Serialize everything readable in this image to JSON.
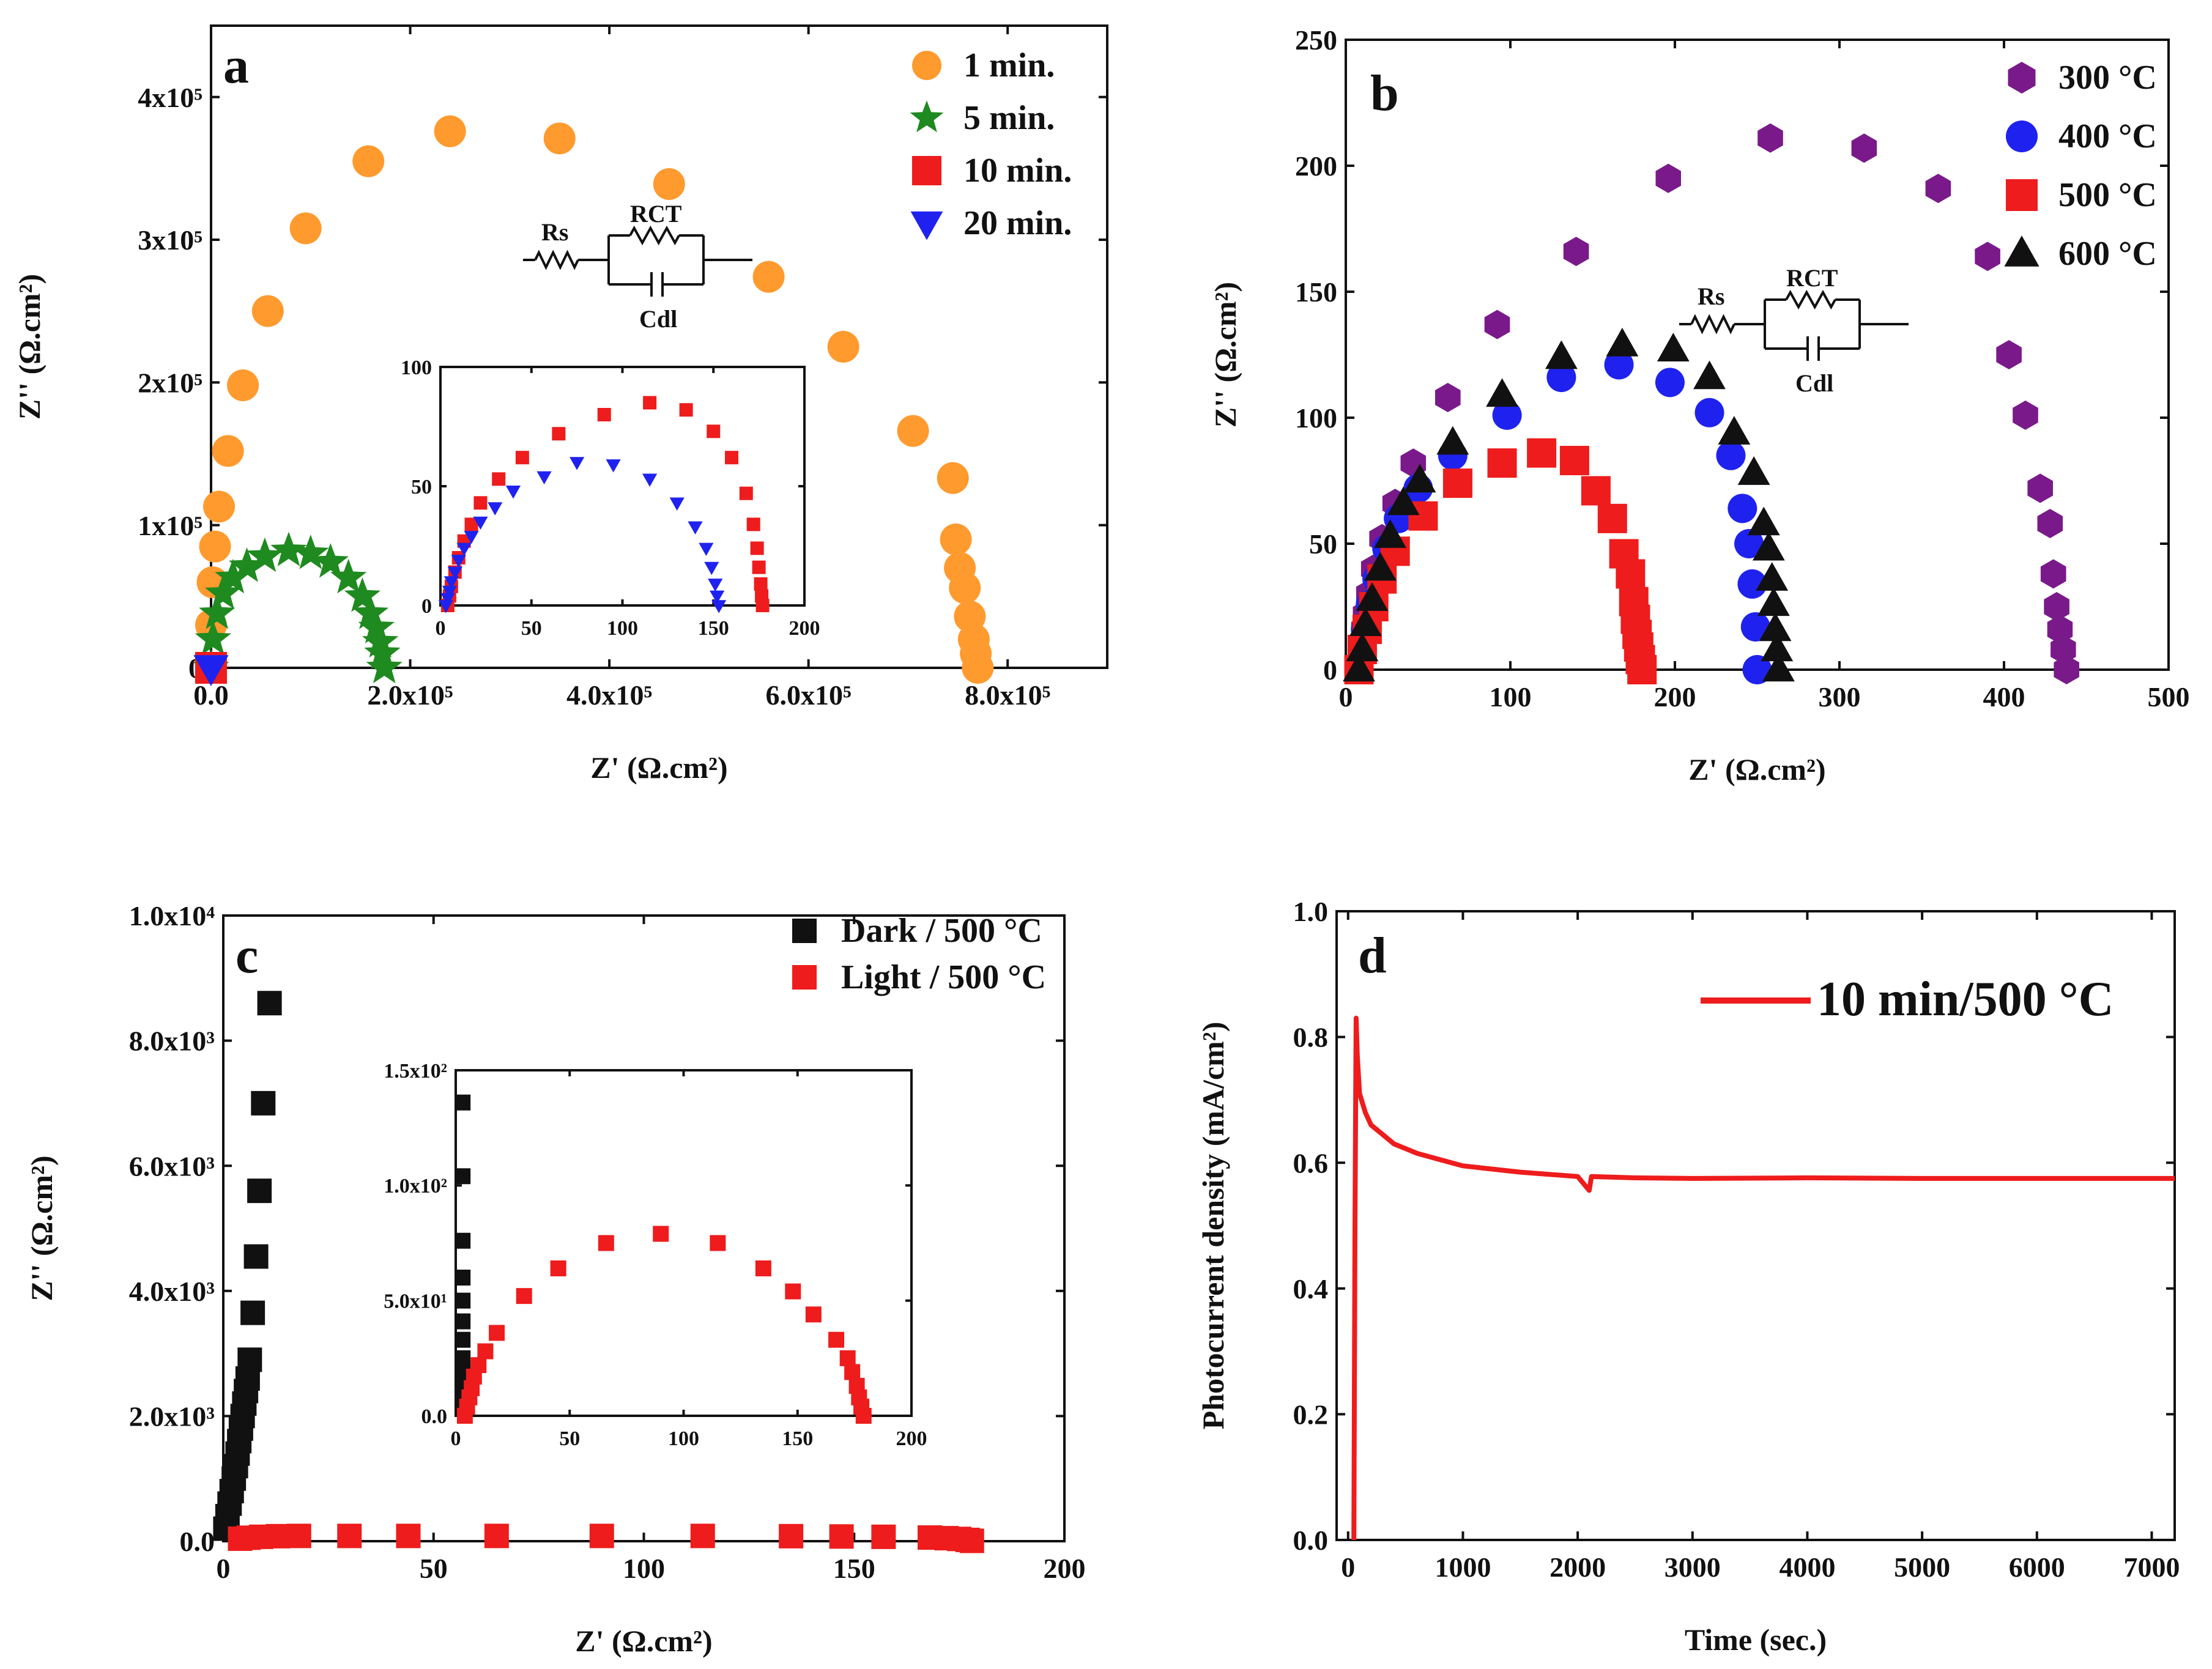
{
  "chart_data": [
    {
      "panel": "a",
      "type": "scatter",
      "xlabel": "Z' (Ω.cm²)",
      "ylabel": "Z'' (Ω.cm²)",
      "xlim": [
        0,
        900000
      ],
      "ylim": [
        0,
        450000
      ],
      "x_ticks": [
        0,
        200000,
        400000,
        600000,
        800000
      ],
      "x_tick_labels": [
        "0.0",
        "2.0x10⁵",
        "4.0x10⁵",
        "6.0x10⁵",
        "8.0x10⁵"
      ],
      "y_ticks": [
        0,
        100000,
        200000,
        300000,
        400000
      ],
      "y_tick_labels": [
        "0",
        "1x10⁵",
        "2x10⁵",
        "3x10⁵",
        "4x10⁵"
      ],
      "series": [
        {
          "name": "1 min.",
          "marker": "circle",
          "color": "#ff9a2e",
          "x": [
            0,
            1500,
            4000,
            8000,
            17000,
            32000,
            57000,
            95000,
            158000,
            240000,
            350000,
            460000,
            560000,
            635000,
            705000,
            745000,
            748000,
            752000,
            757000,
            762000,
            766000,
            768000,
            770000
          ],
          "y": [
            30000,
            60000,
            85000,
            113000,
            152000,
            198000,
            250000,
            308000,
            355000,
            376000,
            371000,
            339000,
            274000,
            225000,
            166000,
            133000,
            90000,
            70000,
            56000,
            36000,
            20000,
            10000,
            0
          ]
        },
        {
          "name": "5 min.",
          "marker": "star",
          "color": "#1f8a1f",
          "x": [
            0,
            2000,
            6000,
            12000,
            22000,
            36000,
            54000,
            78000,
            100000,
            120000,
            138000,
            152000,
            160000,
            166000,
            170000,
            172000,
            174000
          ],
          "y": [
            0,
            20000,
            38000,
            52000,
            63000,
            71000,
            78000,
            82000,
            80000,
            74000,
            63000,
            50000,
            38000,
            28000,
            18000,
            10000,
            0
          ]
        },
        {
          "name": "10 min.",
          "marker": "square",
          "color": "#ee1c1c",
          "x": [
            0
          ],
          "y": [
            0
          ]
        },
        {
          "name": "20 min.",
          "marker": "triangle-down",
          "color": "#1f22ee",
          "x": [
            0
          ],
          "y": [
            0
          ]
        }
      ],
      "inset": {
        "xlim": [
          0,
          200
        ],
        "ylim": [
          0,
          100
        ],
        "x_ticks": [
          0,
          50,
          100,
          150,
          200
        ],
        "x_tick_labels": [
          "0",
          "50",
          "100",
          "150",
          "200"
        ],
        "y_ticks": [
          0,
          50,
          100
        ],
        "y_tick_labels": [
          "0",
          "50",
          "100"
        ],
        "series": [
          {
            "name": "10 min.",
            "marker": "square",
            "color": "#ee1c1c",
            "x": [
              4,
              5,
              6,
              8,
              10,
              13,
              17,
              22,
              32,
              45,
              65,
              90,
              115,
              135,
              150,
              160,
              168,
              172,
              174,
              175,
              176,
              176.5,
              177
            ],
            "y": [
              0,
              4,
              8,
              14,
              20,
              27,
              34,
              43,
              53,
              62,
              72,
              80,
              85,
              82,
              73,
              62,
              47,
              34,
              24,
              16,
              9,
              4,
              0
            ]
          },
          {
            "name": "20 min.",
            "marker": "triangle-down",
            "color": "#1f22ee",
            "x": [
              3,
              4,
              5,
              6,
              8,
              10,
              13,
              17,
              22,
              30,
              40,
              57,
              75,
              95,
              115,
              130,
              140,
              146,
              149,
              151,
              152,
              153
            ],
            "y": [
              0,
              3,
              6,
              10,
              14,
              19,
              24,
              29,
              35,
              41,
              48,
              54,
              60,
              59,
              53,
              43,
              33,
              24,
              16,
              9,
              4,
              0
            ]
          }
        ]
      },
      "circuit": {
        "rs": "Rs",
        "rct": "RCT",
        "cdl": "Cdl"
      }
    },
    {
      "panel": "b",
      "type": "scatter",
      "xlabel": "Z' (Ω.cm²)",
      "ylabel": "Z'' (Ω.cm²)",
      "xlim": [
        0,
        500
      ],
      "ylim": [
        0,
        250
      ],
      "x_ticks": [
        0,
        100,
        200,
        300,
        400,
        500
      ],
      "x_tick_labels": [
        "0",
        "100",
        "200",
        "300",
        "400",
        "500"
      ],
      "y_ticks": [
        0,
        50,
        100,
        150,
        200,
        250
      ],
      "y_tick_labels": [
        "0",
        "50",
        "100",
        "150",
        "200",
        "250"
      ],
      "series": [
        {
          "name": "300 °C",
          "marker": "hexagon",
          "color": "#7a1a8a",
          "x": [
            8,
            9,
            10,
            11,
            12,
            14,
            17,
            22,
            30,
            41,
            62,
            92,
            140,
            196,
            258,
            315,
            360,
            390,
            403,
            413,
            422,
            428,
            430,
            432,
            434,
            436,
            438
          ],
          "y": [
            0,
            5,
            10,
            16,
            22,
            30,
            40,
            52,
            66,
            82,
            108,
            137,
            166,
            195,
            211,
            207,
            191,
            164,
            125,
            101,
            72,
            58,
            38,
            25,
            16,
            8,
            0
          ]
        },
        {
          "name": "400 °C",
          "marker": "circle",
          "color": "#1f22ee",
          "x": [
            8,
            10,
            12,
            15,
            19,
            25,
            32,
            44,
            65,
            98,
            131,
            166,
            197,
            221,
            234,
            241,
            245,
            247,
            249,
            250
          ],
          "y": [
            0,
            8,
            16,
            26,
            36,
            48,
            60,
            72,
            85,
            101,
            116,
            121,
            114,
            102,
            85,
            64,
            50,
            34,
            17,
            0
          ]
        },
        {
          "name": "500 °C",
          "marker": "square",
          "color": "#ee1c1c",
          "x": [
            8,
            10,
            13,
            17,
            22,
            30,
            47,
            68,
            95,
            119,
            139,
            152,
            162,
            169,
            173,
            175,
            176,
            177,
            178,
            179,
            180
          ],
          "y": [
            0,
            8,
            16,
            25,
            36,
            47,
            61,
            74,
            82,
            86,
            83,
            71,
            60,
            46,
            38,
            27,
            20,
            14,
            9,
            4,
            0
          ]
        },
        {
          "name": "600 °C",
          "marker": "triangle-up",
          "color": "#111111",
          "x": [
            8,
            10,
            12,
            16,
            21,
            27,
            35,
            45,
            65,
            95,
            131,
            168,
            199,
            221,
            236,
            248,
            254,
            257,
            259,
            260,
            261,
            262,
            263
          ],
          "y": [
            0,
            8,
            18,
            28,
            40,
            53,
            66,
            75,
            90,
            109,
            124,
            129,
            127,
            116,
            94,
            78,
            58,
            48,
            36,
            26,
            16,
            8,
            0
          ]
        }
      ],
      "circuit": {
        "rs": "Rs",
        "rct": "RCT",
        "cdl": "Cdl"
      }
    },
    {
      "panel": "c",
      "type": "scatter",
      "xlabel": "Z' (Ω.cm²)",
      "ylabel": "Z'' (Ω.cm²)",
      "xlim": [
        0,
        200
      ],
      "ylim": [
        0,
        10000
      ],
      "x_ticks": [
        0,
        50,
        100,
        150,
        200
      ],
      "x_tick_labels": [
        "0",
        "50",
        "100",
        "150",
        "200"
      ],
      "y_ticks": [
        0,
        2000,
        4000,
        6000,
        8000,
        10000
      ],
      "y_tick_labels": [
        "0.0",
        "2.0x10³",
        "4.0x10³",
        "6.0x10³",
        "8.0x10³",
        "1.0x10⁴"
      ],
      "series": [
        {
          "name": "Dark / 500 °C",
          "marker": "square",
          "color": "#111111",
          "x": [
            0.5,
            1,
            1.5,
            2,
            2.5,
            3,
            3.4,
            3.8,
            4.2,
            4.6,
            5,
            5.4,
            5.8,
            6.3,
            7,
            7.8,
            8.6,
            9.5,
            11
          ],
          "y": [
            200,
            400,
            600,
            800,
            1000,
            1200,
            1400,
            1600,
            1800,
            2000,
            2200,
            2400,
            2600,
            2900,
            3650,
            4550,
            5600,
            7000,
            8600
          ]
        },
        {
          "name": "Light / 500 °C",
          "marker": "square",
          "color": "#ee1c1c",
          "x": [
            4,
            6,
            9,
            13,
            18,
            30,
            44,
            65,
            90,
            114,
            135,
            147,
            157,
            168,
            172,
            175,
            177,
            178
          ],
          "y": [
            40,
            55,
            70,
            80,
            84,
            84,
            84,
            84,
            84,
            84,
            80,
            75,
            70,
            58,
            48,
            36,
            20,
            5
          ]
        }
      ],
      "inset": {
        "xlim": [
          0,
          200
        ],
        "ylim": [
          0,
          150
        ],
        "x_ticks": [
          0,
          50,
          100,
          150,
          200
        ],
        "x_tick_labels": [
          "0",
          "50",
          "100",
          "150",
          "200"
        ],
        "y_ticks": [
          0,
          50,
          100,
          150
        ],
        "y_tick_labels": [
          "0.0",
          "5.0x10¹",
          "1.0x10²",
          "1.5x10²"
        ],
        "series": [
          {
            "name": "Dark / 500 °C",
            "marker": "square",
            "color": "#111111",
            "x": [
              3,
              3,
              3,
              3,
              3,
              3,
              3,
              3,
              3,
              3,
              3,
              3
            ],
            "y": [
              4,
              9,
              14,
              19,
              25,
              33,
              41,
              50,
              60,
              76,
              104,
              136
            ]
          },
          {
            "name": "Light / 500 °C",
            "marker": "square",
            "color": "#ee1c1c",
            "x": [
              4,
              5,
              6,
              7,
              8,
              10,
              13,
              18,
              30,
              45,
              66,
              90,
              115,
              135,
              148,
              157,
              167,
              172,
              174,
              176,
              177,
              178,
              179
            ],
            "y": [
              0,
              4,
              8,
              12,
              17,
              22,
              28,
              36,
              52,
              64,
              75,
              79,
              75,
              64,
              54,
              44,
              33,
              25,
              19,
              13,
              8,
              4,
              0
            ]
          }
        ]
      }
    },
    {
      "panel": "d",
      "type": "line",
      "xlabel": "Time (sec.)",
      "ylabel": "Photocurrent density (mA/cm²)",
      "xlim": [
        -100,
        7200
      ],
      "ylim": [
        0,
        1.0
      ],
      "x_ticks": [
        0,
        1000,
        2000,
        3000,
        4000,
        5000,
        6000,
        7000
      ],
      "x_tick_labels": [
        "0",
        "1000",
        "2000",
        "3000",
        "4000",
        "5000",
        "6000",
        "7000"
      ],
      "y_ticks": [
        0,
        0.2,
        0.4,
        0.6,
        0.8,
        1.0
      ],
      "y_tick_labels": [
        "0.0",
        "0.2",
        "0.4",
        "0.6",
        "0.8",
        "1.0"
      ],
      "series": [
        {
          "name": "10 min/500 °C",
          "color": "#ee1c1c",
          "x": [
            50,
            60,
            70,
            80,
            100,
            150,
            200,
            300,
            400,
            600,
            800,
            1000,
            1500,
            2000,
            2100,
            2120,
            2500,
            3000,
            4000,
            5000,
            6000,
            7000,
            7200
          ],
          "y": [
            0.0,
            0.5,
            0.83,
            0.77,
            0.71,
            0.68,
            0.66,
            0.645,
            0.63,
            0.615,
            0.605,
            0.595,
            0.585,
            0.578,
            0.556,
            0.578,
            0.576,
            0.575,
            0.576,
            0.575,
            0.575,
            0.575,
            0.575
          ]
        }
      ]
    }
  ],
  "legend": {
    "a": [
      "1 min.",
      "5 min.",
      "10 min.",
      "20 min."
    ],
    "b": [
      "300 °C",
      "400 °C",
      "500 °C",
      "600 °C"
    ],
    "c": [
      "Dark / 500 °C",
      "Light / 500 °C"
    ],
    "d": [
      "10 min/500 °C"
    ]
  },
  "labels": {
    "panel_a": "a",
    "panel_b": "b",
    "panel_c": "c",
    "panel_d": "d",
    "zreal": "Z' (Ω.cm²)",
    "zimag": "Z'' (Ω.cm²)",
    "time": "Time (sec.)",
    "photocurrent": "Photocurrent density (mA/cm²)"
  }
}
